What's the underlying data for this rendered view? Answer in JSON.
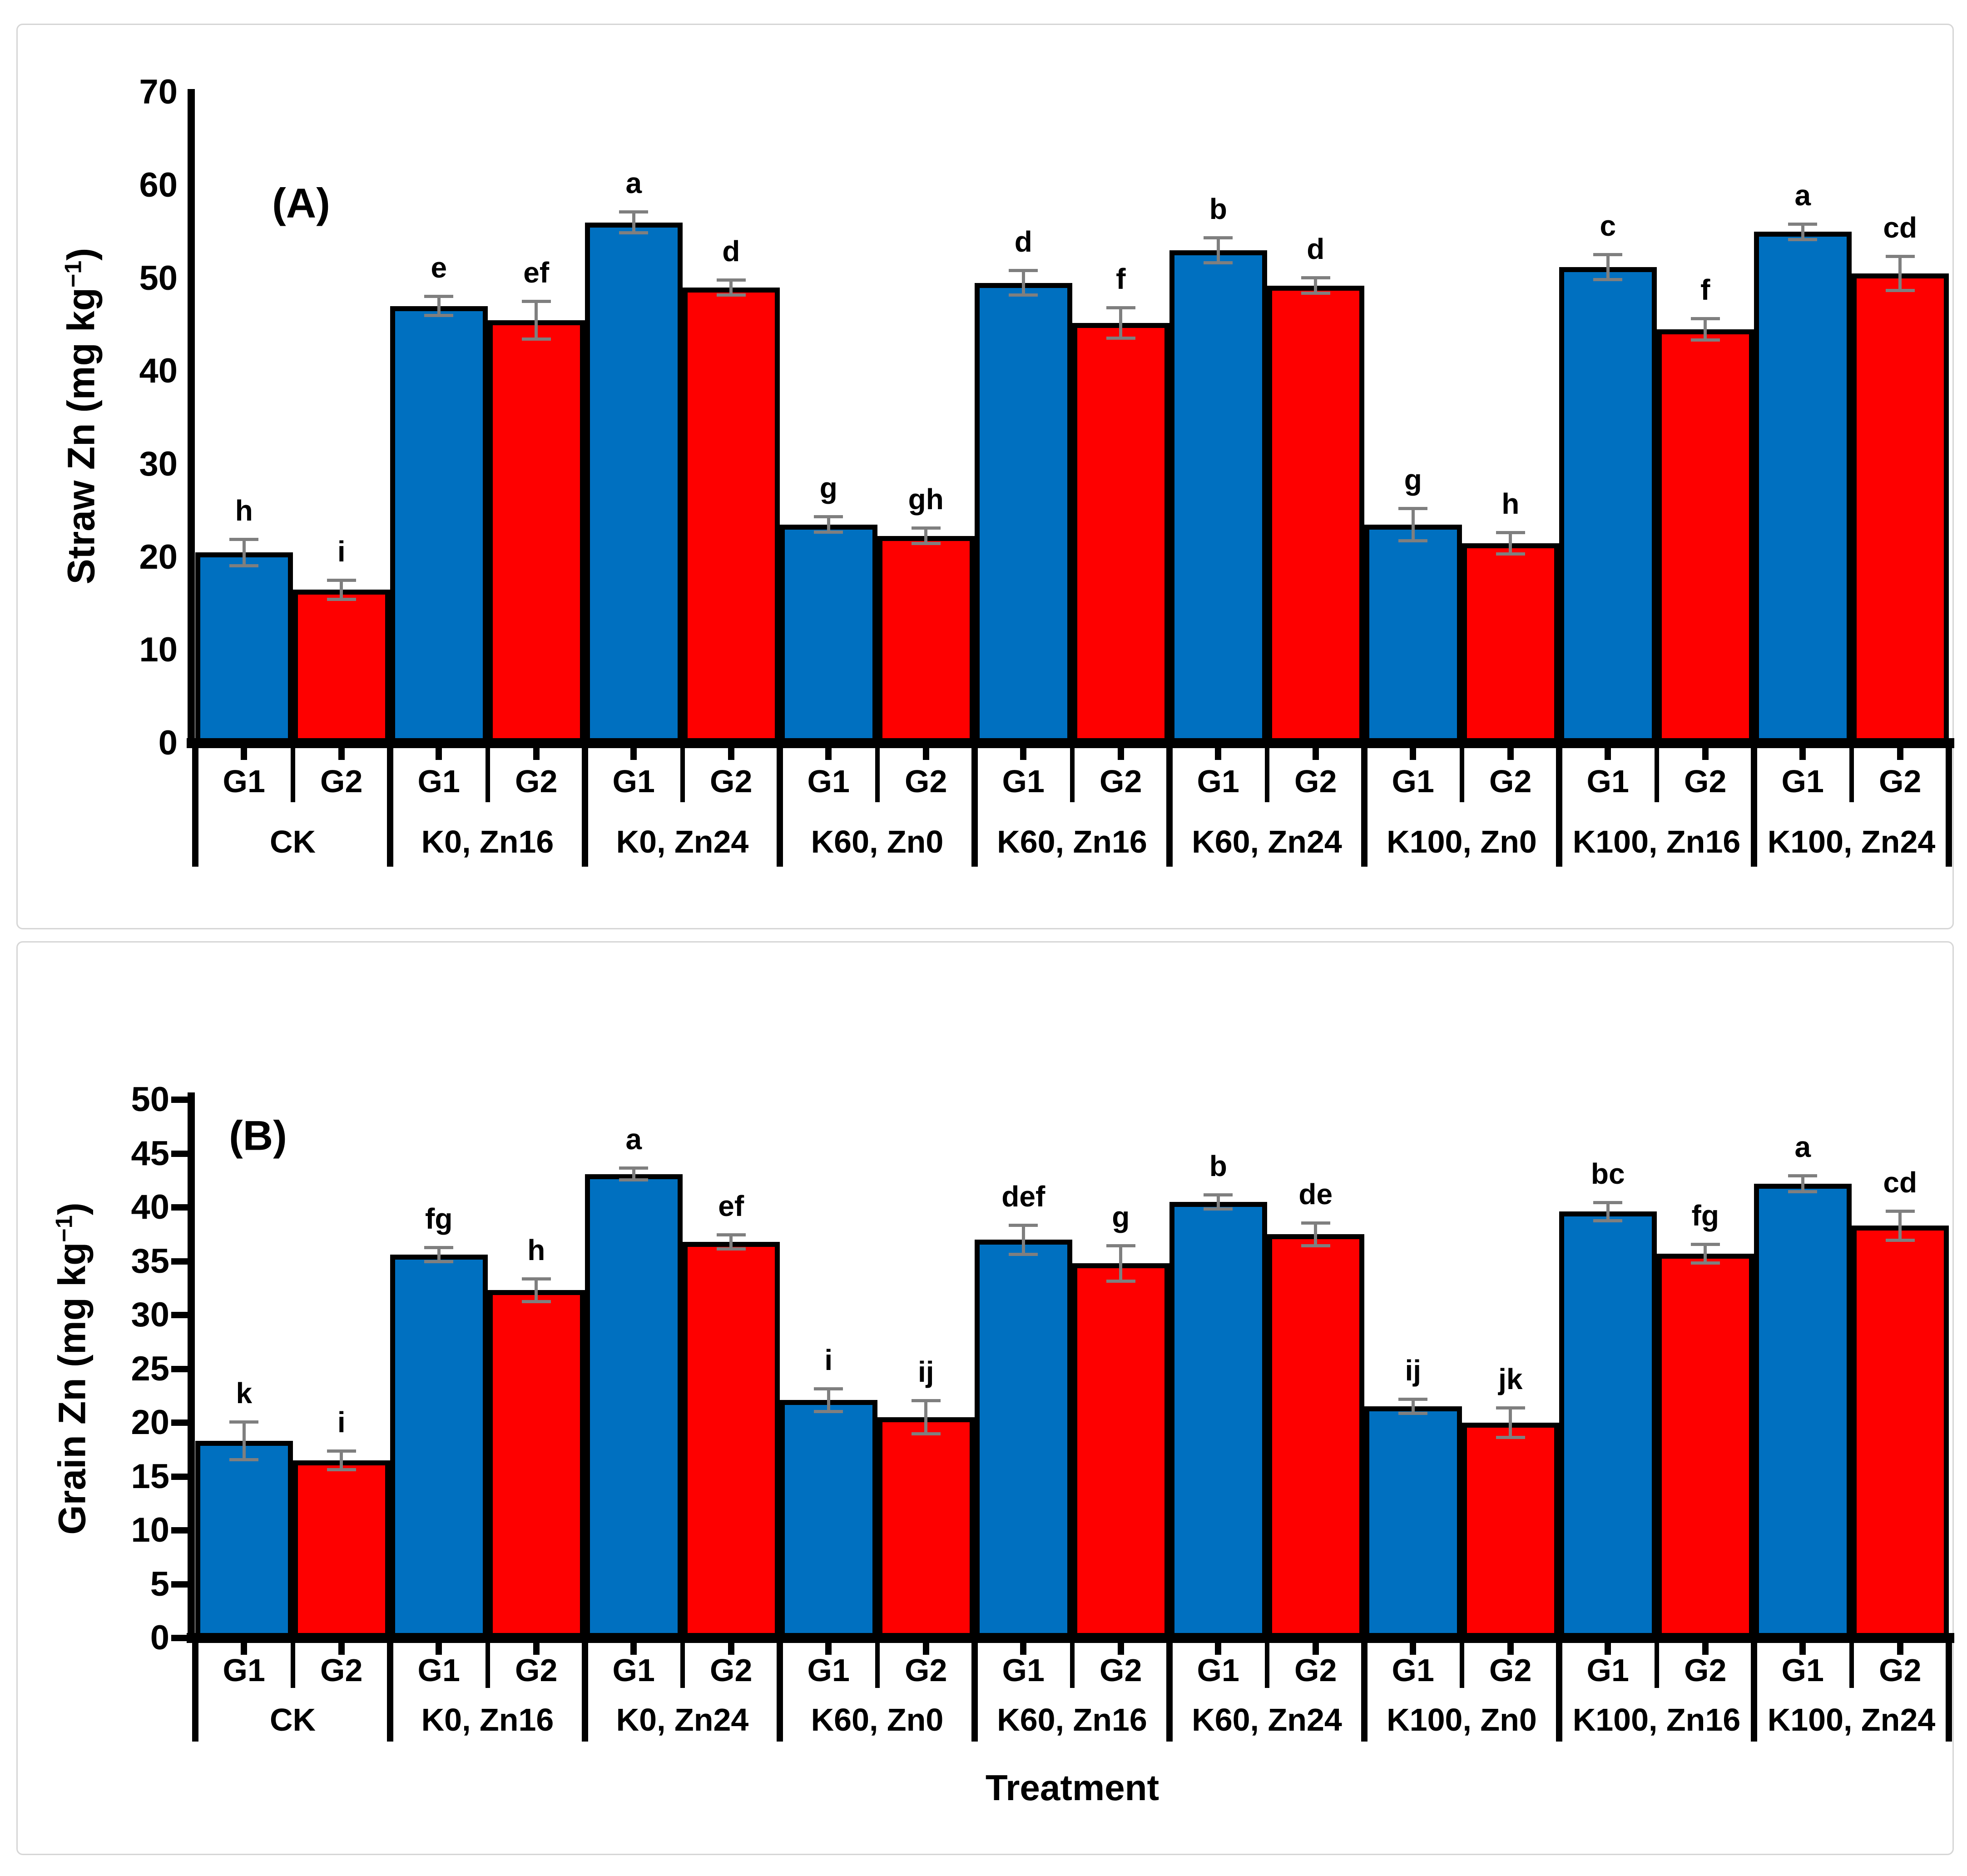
{
  "figure": {
    "background": "#ffffff",
    "series_legend": [
      "G1",
      "G2"
    ],
    "x_axis_title": "Treatment"
  },
  "colors": {
    "g1_bar": "#0070C0",
    "g2_bar": "#FE0000",
    "bar_border": "#000000",
    "error_bar": "#7f7f7f",
    "axis": "#000000",
    "text": "#000000",
    "frame_border": "#d6d6d6"
  },
  "chart_data": [
    {
      "type": "bar",
      "panel_label": "(A)",
      "ylabel_pre": "Straw Zn (mg kg",
      "ylabel_sup": "−1",
      "ylabel_post": ")",
      "xlabel": "",
      "ylim": [
        0,
        70
      ],
      "ytick_step": 10,
      "yticks": [
        0,
        10,
        20,
        30,
        40,
        50,
        60,
        70
      ],
      "grid": false,
      "legend_position": "none",
      "categories": [
        "CK",
        "K0, Zn16",
        "K0, Zn24",
        "K60, Zn0",
        "K60, Zn16",
        "K60, Zn24",
        "K100, Zn0",
        "K100, Zn16",
        "K100, Zn24"
      ],
      "series": [
        {
          "name": "G1",
          "color_key": "g1_bar",
          "values": [
            20.5,
            47.0,
            56.0,
            23.5,
            49.5,
            53.0,
            23.5,
            51.2,
            55.0
          ],
          "errors": [
            1.6,
            1.2,
            1.3,
            1.0,
            1.5,
            1.5,
            1.9,
            1.5,
            1.0
          ],
          "letters": [
            "h",
            "e",
            "a",
            "g",
            "d",
            "b",
            "g",
            "c",
            "a"
          ]
        },
        {
          "name": "G2",
          "color_key": "g2_bar",
          "values": [
            16.5,
            45.5,
            49.0,
            22.3,
            45.2,
            49.2,
            21.5,
            44.5,
            50.5
          ],
          "errors": [
            1.2,
            2.2,
            1.0,
            1.0,
            1.8,
            1.0,
            1.3,
            1.3,
            2.0
          ],
          "letters": [
            "i",
            "ef",
            "d",
            "gh",
            "f",
            "d",
            "h",
            "f",
            "cd"
          ]
        }
      ]
    },
    {
      "type": "bar",
      "panel_label": "(B)",
      "ylabel_pre": "Grain Zn (mg kg",
      "ylabel_sup": "−1",
      "ylabel_post": ")",
      "xlabel": "Treatment",
      "ylim": [
        0,
        50
      ],
      "ytick_step": 5,
      "yticks": [
        0,
        5,
        10,
        15,
        20,
        25,
        30,
        35,
        40,
        45,
        50
      ],
      "grid": false,
      "legend_position": "none",
      "categories": [
        "CK",
        "K0, Zn16",
        "K0, Zn24",
        "K60, Zn0",
        "K60, Zn16",
        "K60, Zn24",
        "K100, Zn0",
        "K100, Zn16",
        "K100, Zn24"
      ],
      "series": [
        {
          "name": "G1",
          "color_key": "g1_bar",
          "values": [
            18.3,
            35.6,
            43.1,
            22.1,
            37.0,
            40.5,
            21.5,
            39.6,
            42.2
          ],
          "errors": [
            1.9,
            0.8,
            0.7,
            1.2,
            1.5,
            0.8,
            0.8,
            1.0,
            0.9
          ],
          "letters": [
            "k",
            "fg",
            "a",
            "i",
            "def",
            "b",
            "ij",
            "bc",
            "a"
          ]
        },
        {
          "name": "G2",
          "color_key": "g2_bar",
          "values": [
            16.5,
            32.3,
            36.8,
            20.5,
            34.8,
            37.5,
            20.0,
            35.7,
            38.3
          ],
          "errors": [
            1.0,
            1.2,
            0.8,
            1.7,
            1.8,
            1.2,
            1.5,
            1.0,
            1.5
          ],
          "letters": [
            "i",
            "h",
            "ef",
            "ij",
            "g",
            "de",
            "jk",
            "fg",
            "cd"
          ]
        }
      ]
    }
  ]
}
